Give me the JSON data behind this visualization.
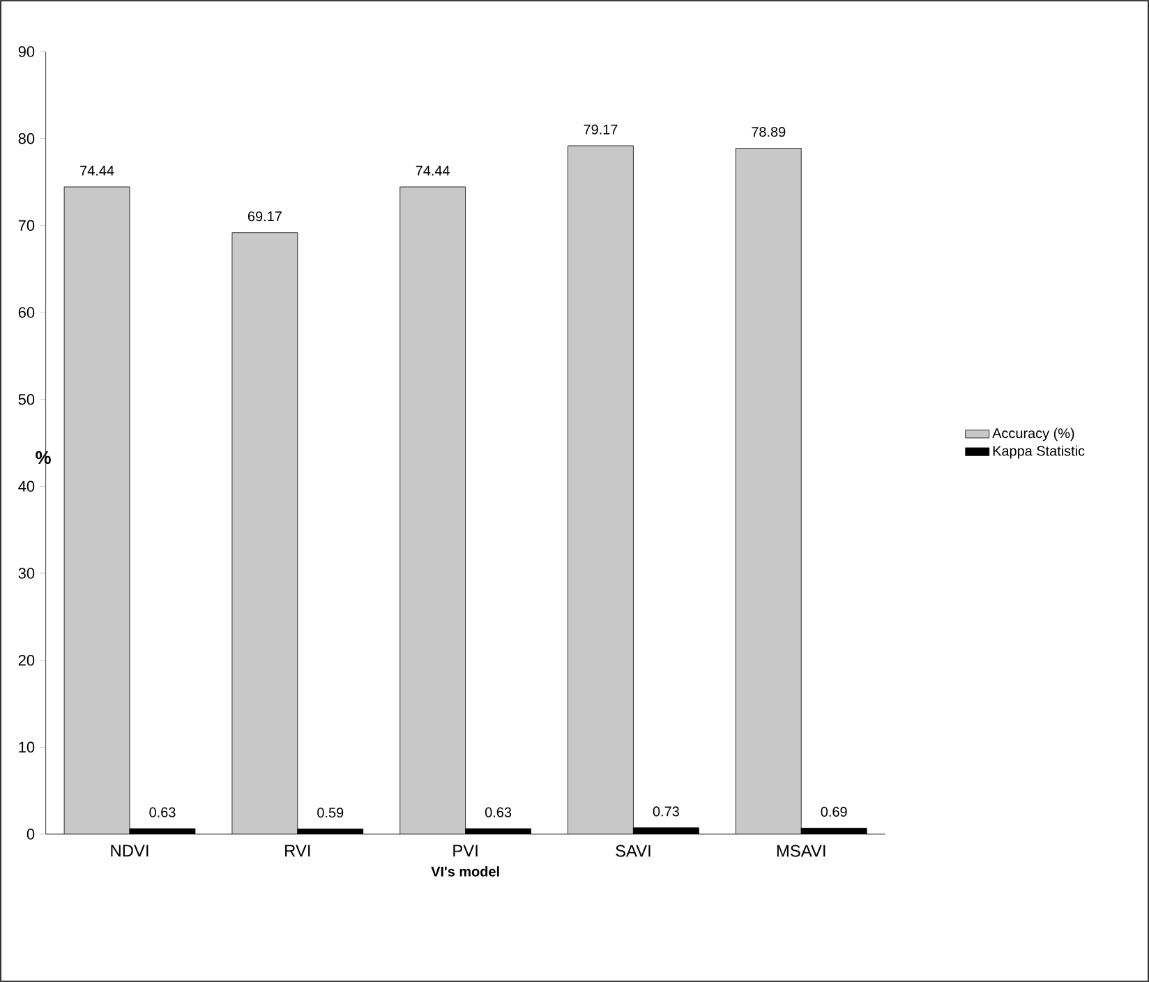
{
  "chart_data": {
    "type": "bar",
    "xlabel": "VI's model",
    "ylabel": "%",
    "categories": [
      "NDVI",
      "RVI",
      "PVI",
      "SAVI",
      "MSAVI"
    ],
    "series": [
      {
        "name": "Accuracy (%)",
        "color": "#c8c8c8",
        "values": [
          74.44,
          69.17,
          74.44,
          79.17,
          78.89
        ]
      },
      {
        "name": "Kappa Statistic",
        "color": "#000000",
        "values": [
          0.63,
          0.59,
          0.63,
          0.73,
          0.69
        ]
      }
    ],
    "ylim": [
      0,
      90
    ],
    "yticks": [
      0,
      10,
      20,
      30,
      40,
      50,
      60,
      70,
      80,
      90
    ],
    "data_labels": true,
    "legend": "right",
    "grid": false
  }
}
